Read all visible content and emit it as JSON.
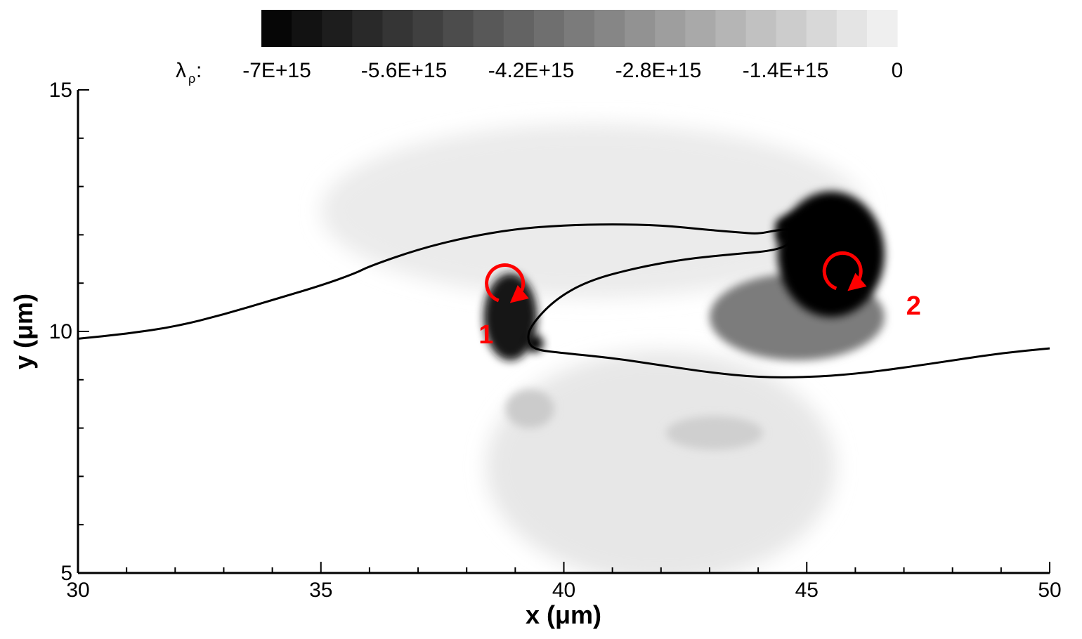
{
  "chart_data": {
    "type": "heatmap",
    "title": "",
    "xlabel": "x (μm)",
    "ylabel": "y (μm)",
    "xlim": [
      30,
      50
    ],
    "ylim": [
      5,
      15
    ],
    "x_ticks": [
      30,
      35,
      40,
      45,
      50
    ],
    "y_ticks": [
      5,
      10,
      15
    ],
    "x_minor_step": 1,
    "y_minor_step": 1,
    "colorbar": {
      "label_symbol": "λ",
      "label_subscript": "ρ",
      "label_suffix": ":",
      "min": -7000000000000000.0,
      "max": 0,
      "levels": 21,
      "tick_values": [
        -7000000000000000.0,
        -5600000000000000.0,
        -4200000000000000.0,
        -2800000000000000.0,
        -1400000000000000.0,
        0
      ],
      "tick_labels": [
        "-7E+15",
        "-5.6E+15",
        "-4.2E+15",
        "-2.8E+15",
        "-1.4E+15",
        "0"
      ],
      "color_low": "#000000",
      "color_high": "#f5f5f5",
      "position": "top"
    },
    "interface_curve": [
      [
        30.0,
        9.85
      ],
      [
        31.0,
        9.95
      ],
      [
        32.0,
        10.1
      ],
      [
        33.0,
        10.35
      ],
      [
        34.0,
        10.65
      ],
      [
        35.0,
        10.95
      ],
      [
        35.7,
        11.2
      ],
      [
        36.0,
        11.35
      ],
      [
        37.0,
        11.7
      ],
      [
        38.0,
        11.95
      ],
      [
        39.0,
        12.12
      ],
      [
        40.0,
        12.2
      ],
      [
        41.0,
        12.22
      ],
      [
        42.0,
        12.2
      ],
      [
        43.0,
        12.1
      ],
      [
        43.6,
        12.05
      ],
      [
        44.0,
        12.02
      ],
      [
        44.3,
        12.08
      ],
      [
        44.6,
        12.12
      ],
      [
        44.75,
        12.05
      ],
      [
        44.65,
        11.8
      ],
      [
        44.3,
        11.67
      ],
      [
        43.5,
        11.6
      ],
      [
        42.5,
        11.5
      ],
      [
        41.5,
        11.32
      ],
      [
        40.5,
        11.05
      ],
      [
        39.8,
        10.65
      ],
      [
        39.3,
        10.1
      ],
      [
        39.25,
        9.8
      ],
      [
        39.4,
        9.62
      ],
      [
        40.0,
        9.55
      ],
      [
        41.0,
        9.45
      ],
      [
        42.0,
        9.3
      ],
      [
        43.0,
        9.15
      ],
      [
        44.0,
        9.05
      ],
      [
        45.0,
        9.05
      ],
      [
        46.0,
        9.12
      ],
      [
        47.0,
        9.25
      ],
      [
        48.0,
        9.4
      ],
      [
        49.0,
        9.55
      ],
      [
        50.0,
        9.65
      ]
    ],
    "field_regions": [
      {
        "name": "upper-halo",
        "cx": 40.6,
        "cy": 12.5,
        "rx": 5.6,
        "ry": 1.8,
        "value": -300000000000000.0
      },
      {
        "name": "lower-halo",
        "cx": 42.0,
        "cy": 7.2,
        "rx": 3.6,
        "ry": 2.4,
        "value": -400000000000000.0
      },
      {
        "name": "lower-spot-left",
        "cx": 39.3,
        "cy": 8.4,
        "rx": 0.5,
        "ry": 0.4,
        "value": -1200000000000000.0
      },
      {
        "name": "lower-spot-right",
        "cx": 43.1,
        "cy": 7.9,
        "rx": 1.0,
        "ry": 0.35,
        "value": -1100000000000000.0
      },
      {
        "name": "inner-core-right",
        "cx": 44.8,
        "cy": 10.3,
        "rx": 1.8,
        "ry": 0.9,
        "value": -3500000000000000.0
      },
      {
        "name": "vortex-1",
        "cx": 38.9,
        "cy": 10.3,
        "rx": 0.55,
        "ry": 0.9,
        "value": -6500000000000000.0
      },
      {
        "name": "vortex-1-tip",
        "cx": 39.4,
        "cy": 9.75,
        "rx": 0.18,
        "ry": 0.18,
        "value": -7000000000000000.0
      },
      {
        "name": "vortex-2",
        "cx": 45.5,
        "cy": 11.6,
        "rx": 1.1,
        "ry": 1.3,
        "value": -7000000000000000.0
      },
      {
        "name": "vortex-2-cap",
        "cx": 44.9,
        "cy": 12.2,
        "rx": 0.55,
        "ry": 0.25,
        "value": -7000000000000000.0
      },
      {
        "name": "vortex-2-inner",
        "cx": 44.55,
        "cy": 12.0,
        "rx": 0.2,
        "ry": 0.18,
        "value": -7000000000000000.0
      }
    ],
    "annotations": [
      {
        "label": "1",
        "x": 38.4,
        "y": 9.75,
        "arrow_x": 38.9,
        "arrow_y": 10.35,
        "direction": "clockwise"
      },
      {
        "label": "2",
        "x": 47.2,
        "y": 10.35,
        "arrow_x": 45.85,
        "arrow_y": 10.6,
        "direction": "clockwise"
      }
    ],
    "annotation_color": "#ff0000",
    "grid": false
  }
}
